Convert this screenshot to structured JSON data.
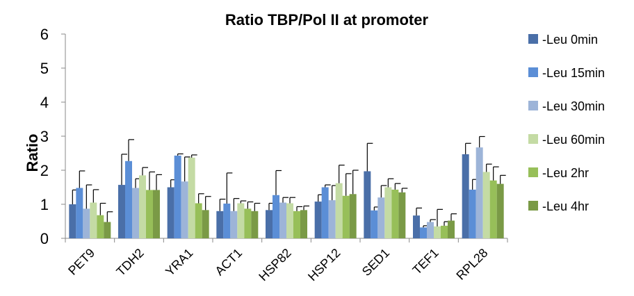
{
  "chart_data": {
    "type": "bar",
    "title": "Ratio TBP/Pol II at promoter",
    "xlabel": "",
    "ylabel": "Ratio",
    "ylim": [
      0,
      6
    ],
    "yticks": [
      "0",
      "1",
      "2",
      "3",
      "4",
      "5",
      "6"
    ],
    "grid": false,
    "legend_position": "right",
    "categories": [
      "PET9",
      "TDH2",
      "YRA1",
      "ACT1",
      "HSP82",
      "HSP12",
      "SED1",
      "TEF1",
      "RPL28"
    ],
    "series": [
      {
        "name": "-Leu 0min",
        "color": "#4a6fa8",
        "values": [
          1.0,
          1.57,
          1.5,
          0.8,
          0.83,
          1.08,
          1.97,
          0.67,
          2.47
        ],
        "errors": [
          0.42,
          0.9,
          0.22,
          0.35,
          0.2,
          0.2,
          0.82,
          0.22,
          0.32
        ]
      },
      {
        "name": "-Leu 15min",
        "color": "#5b8ed6",
        "values": [
          1.48,
          2.27,
          2.43,
          1.02,
          1.27,
          1.5,
          0.82,
          0.32,
          1.43
        ],
        "errors": [
          0.5,
          0.63,
          0.05,
          0.9,
          0.72,
          0.07,
          0.1,
          0.05,
          0.3
        ]
      },
      {
        "name": "-Leu 30min",
        "color": "#9db4d8",
        "values": [
          0.87,
          1.48,
          1.67,
          0.8,
          1.05,
          1.12,
          1.2,
          0.48,
          2.67
        ],
        "errors": [
          0.7,
          0.27,
          0.72,
          0.37,
          0.15,
          0.43,
          0.35,
          0.07,
          0.32
        ]
      },
      {
        "name": "-Leu 60min",
        "color": "#c4dba4",
        "values": [
          1.05,
          1.85,
          2.37,
          1.03,
          1.03,
          1.62,
          1.5,
          0.35,
          1.95
        ],
        "errors": [
          0.38,
          0.23,
          0.08,
          0.07,
          0.17,
          0.53,
          0.25,
          0.5,
          0.23
        ]
      },
      {
        "name": "-Leu 2hr",
        "color": "#97bf59",
        "values": [
          0.68,
          1.42,
          1.03,
          0.87,
          0.8,
          1.25,
          1.43,
          0.37,
          1.7
        ],
        "errors": [
          0.35,
          0.53,
          0.28,
          0.2,
          0.13,
          0.65,
          0.18,
          0.12,
          0.4
        ]
      },
      {
        "name": "-Leu 4hr",
        "color": "#7a9a46",
        "values": [
          0.48,
          1.42,
          0.83,
          0.8,
          0.83,
          1.3,
          1.35,
          0.52,
          1.6
        ],
        "errors": [
          0.3,
          0.45,
          0.4,
          0.23,
          0.12,
          0.7,
          0.12,
          0.2,
          0.25
        ]
      }
    ]
  }
}
